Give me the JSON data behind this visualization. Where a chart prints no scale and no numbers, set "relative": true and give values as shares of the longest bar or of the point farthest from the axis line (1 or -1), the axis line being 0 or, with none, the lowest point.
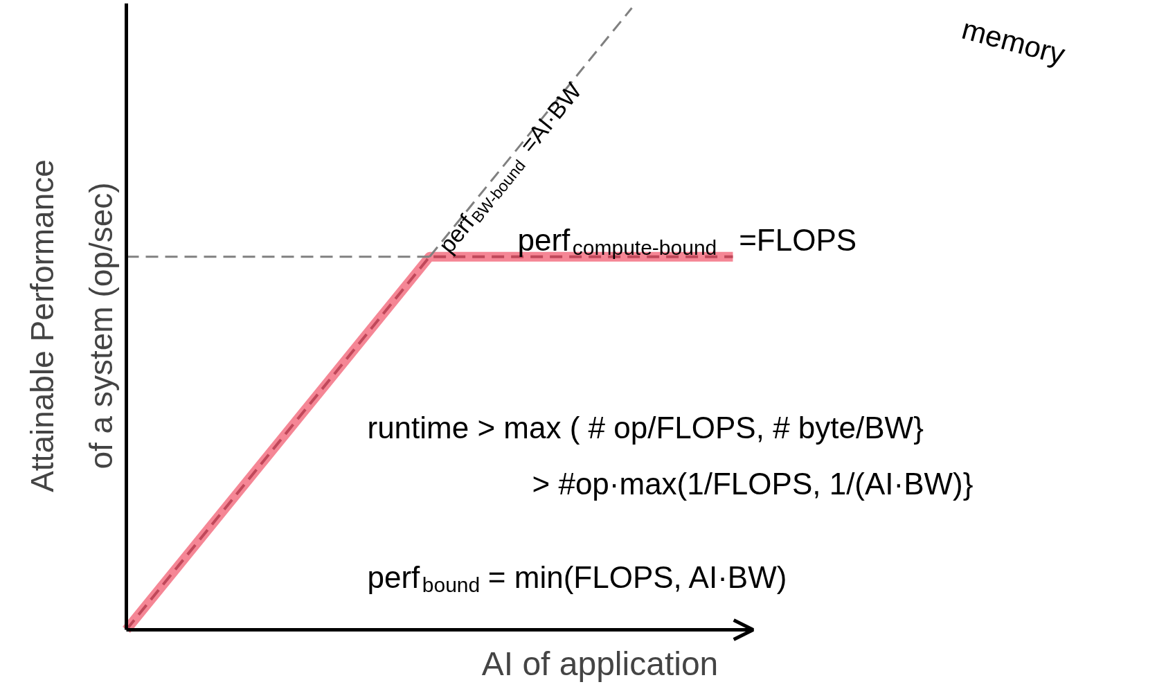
{
  "chart_data": {
    "type": "line",
    "relative": true,
    "tick_labels": false,
    "xlabel": "AI of application",
    "ylabel": "Attainable Performance of a system (op/sec)",
    "categories": [
      null,
      null,
      null,
      null,
      null,
      null,
      null
    ],
    "series": [
      {
        "color": "#f4808f",
        "line_style": "solid",
        "values": [
          0,
          0.2,
          0.4,
          0.6,
          0.6,
          0.6,
          0.6
        ]
      },
      {
        "color": "#c0485a",
        "line_style": "dashed",
        "values": [
          0,
          0.2,
          0.4,
          0.6,
          0.6,
          0.6,
          0.6
        ]
      },
      {
        "color": "#808080",
        "line_style": "dashed",
        "values": [
          null,
          null,
          null,
          0.6,
          0.8,
          1.0,
          null
        ]
      },
      {
        "color": "#808080",
        "line_style": "dashed",
        "values": [
          0.6,
          0.6,
          0.6,
          0.6,
          null,
          null,
          null
        ]
      }
    ],
    "annotations": [
      "perf$_{BW-bound}$=AI·BW",
      "memory",
      "perf$_{compute-bound}$=FLOPS",
      "runtime > max ( # op/FLOPS, # byte/BW}",
      "> #op·max(1/FLOPS, 1/(AI·BW)}",
      "perf$_{bound}$ = min(FLOPS, AI·BW)"
    ]
  }
}
